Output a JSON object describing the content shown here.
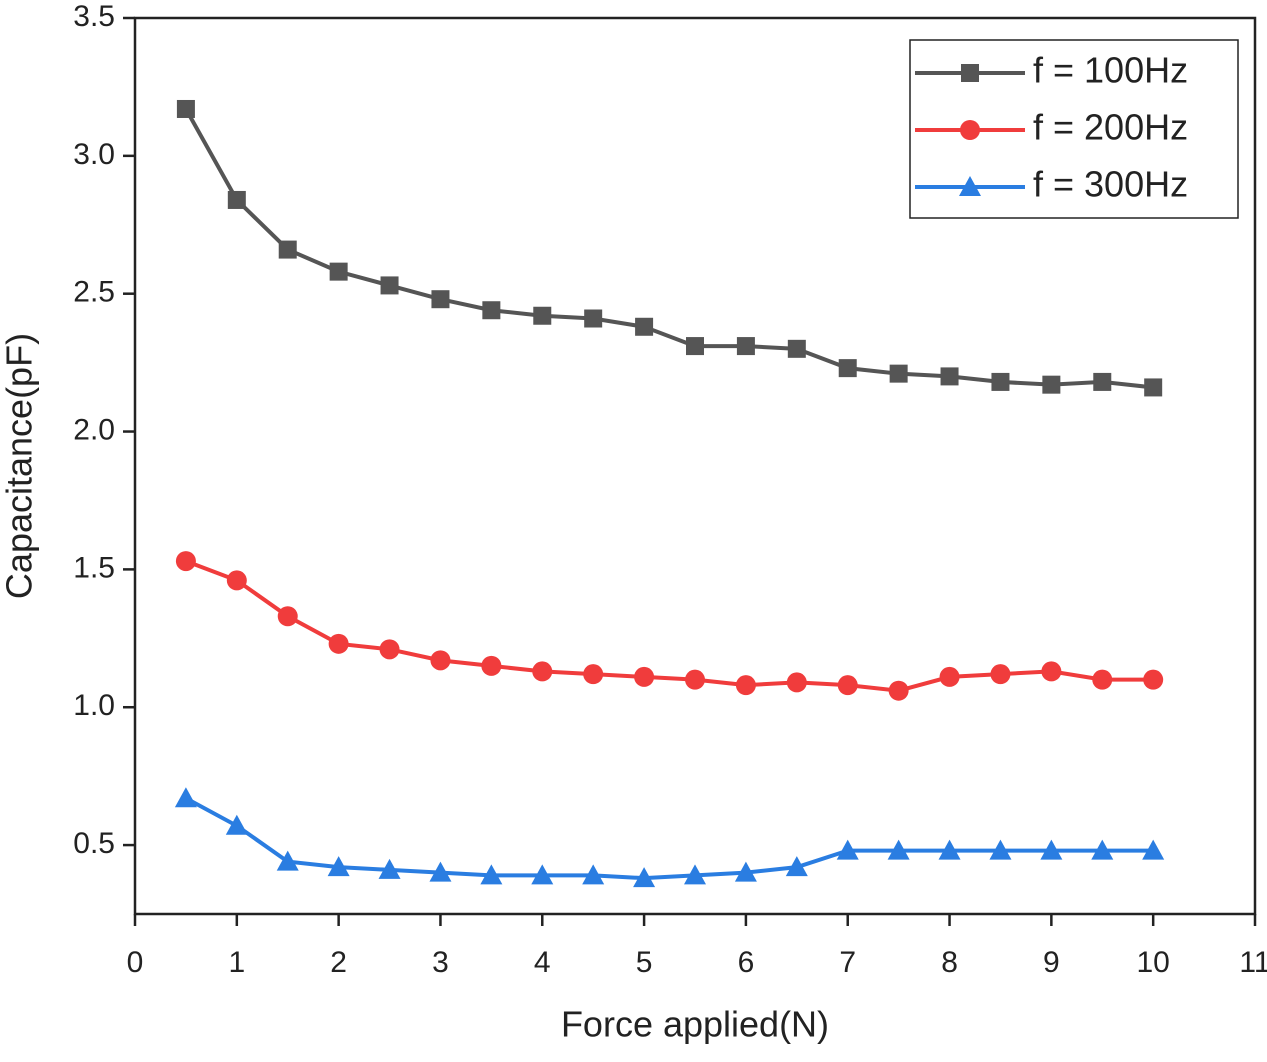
{
  "chart_data": {
    "type": "line",
    "x_label": "Force applied(N)",
    "y_label": "Capacitance(pF)",
    "x": [
      0.5,
      1,
      1.5,
      2,
      2.5,
      3,
      3.5,
      4,
      4.5,
      5,
      5.5,
      6,
      6.5,
      7,
      7.5,
      8,
      8.5,
      9,
      9.5,
      10
    ],
    "series": [
      {
        "name": "f = 100Hz",
        "color": "#555555",
        "marker": "square",
        "values": [
          3.17,
          2.84,
          2.66,
          2.58,
          2.53,
          2.48,
          2.44,
          2.42,
          2.41,
          2.38,
          2.31,
          2.31,
          2.3,
          2.23,
          2.21,
          2.2,
          2.18,
          2.17,
          2.18,
          2.16
        ]
      },
      {
        "name": "f = 200Hz",
        "color": "#f03c3c",
        "marker": "circle",
        "values": [
          1.53,
          1.46,
          1.33,
          1.23,
          1.21,
          1.17,
          1.15,
          1.13,
          1.12,
          1.11,
          1.1,
          1.08,
          1.09,
          1.08,
          1.06,
          1.11,
          1.12,
          1.13,
          1.1,
          1.1
        ]
      },
      {
        "name": "f = 300Hz",
        "color": "#2a7de1",
        "marker": "triangle",
        "values": [
          0.67,
          0.57,
          0.44,
          0.42,
          0.41,
          0.4,
          0.39,
          0.39,
          0.39,
          0.38,
          0.39,
          0.4,
          0.42,
          0.48,
          0.48,
          0.48,
          0.48,
          0.48,
          0.48,
          0.48
        ]
      }
    ],
    "xlim": [
      0,
      11
    ],
    "xticks": [
      0,
      1,
      2,
      3,
      4,
      5,
      6,
      7,
      8,
      9,
      10,
      11
    ],
    "ylim": [
      0.25,
      3.5
    ],
    "yticks": [
      0.5,
      {
        "value": 1,
        "label": "1.0"
      },
      1.5,
      {
        "value": 2,
        "label": "2.0"
      },
      2.5,
      {
        "value": 3,
        "label": "3.0"
      },
      3.5
    ],
    "legend": "upper right",
    "grid": false
  }
}
